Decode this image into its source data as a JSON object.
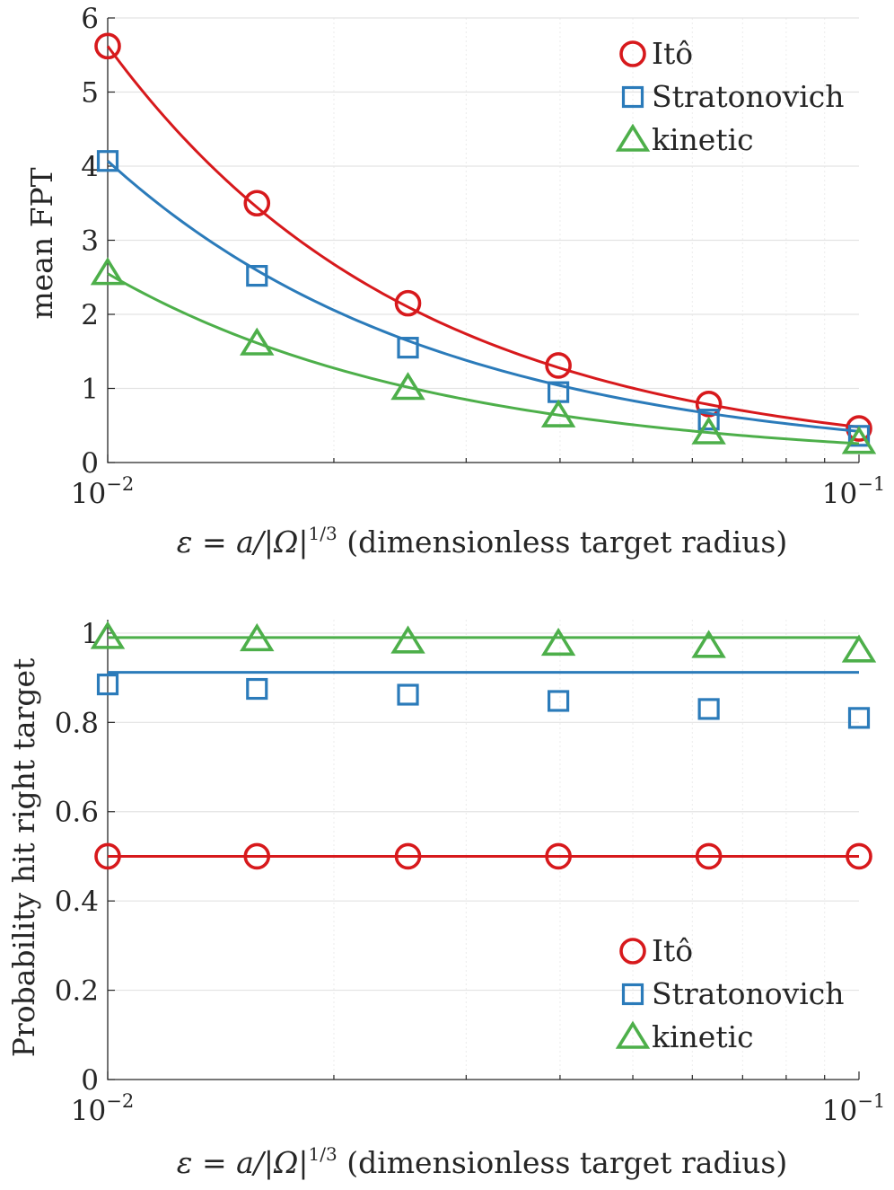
{
  "chart_data": [
    {
      "type": "line",
      "id": "top",
      "title": "",
      "xlabel": {
        "prefix": "ε = a/|Ω|",
        "sup": "1/3",
        "suffix": " (dimensionless target radius)"
      },
      "ylabel": "mean FPT",
      "xscale": "log",
      "xlim": [
        0.01,
        0.1
      ],
      "ylim": [
        0,
        6
      ],
      "yticks": [
        "0",
        "1",
        "2",
        "3",
        "4",
        "5",
        "6"
      ],
      "xticks": [
        {
          "base": "10",
          "exp": "−2"
        },
        {
          "base": "10",
          "exp": "−1"
        }
      ],
      "grid": true,
      "legend_position": "top-right",
      "series": [
        {
          "name": "Itô",
          "color": "#d7191c",
          "marker": "circle",
          "x": [
            0.01,
            0.0158,
            0.0251,
            0.0398,
            0.0631,
            0.1
          ],
          "y": [
            5.62,
            3.5,
            2.15,
            1.31,
            0.79,
            0.46
          ],
          "fit": {
            "a": 5.62,
            "b": 1.07
          }
        },
        {
          "name": "Stratonovich",
          "color": "#2b7bba",
          "marker": "square",
          "x": [
            0.01,
            0.0158,
            0.0251,
            0.0398,
            0.0631,
            0.1
          ],
          "y": [
            4.07,
            2.52,
            1.55,
            0.95,
            0.58,
            0.36
          ],
          "fit": {
            "a": 4.07,
            "b": 0.985
          }
        },
        {
          "name": "kinetic",
          "color": "#4daf4a",
          "marker": "triangle",
          "x": [
            0.01,
            0.0158,
            0.0251,
            0.0398,
            0.0631,
            0.1
          ],
          "y": [
            2.55,
            1.6,
            1.0,
            0.63,
            0.4,
            0.27
          ],
          "fit": {
            "a": 2.55,
            "b": 1.0
          }
        }
      ]
    },
    {
      "type": "line",
      "id": "bottom",
      "title": "",
      "xlabel": {
        "prefix": "ε = a/|Ω|",
        "sup": "1/3",
        "suffix": " (dimensionless target radius)"
      },
      "ylabel": "Probability hit right target",
      "xscale": "log",
      "xlim": [
        0.01,
        0.1
      ],
      "ylim": [
        0,
        1.03
      ],
      "yticks": [
        "0",
        "0.2",
        "0.4",
        "0.6",
        "0.8",
        "1"
      ],
      "xticks": [
        {
          "base": "10",
          "exp": "−2"
        },
        {
          "base": "10",
          "exp": "−1"
        }
      ],
      "grid": true,
      "legend_position": "bottom-right",
      "series": [
        {
          "name": "Itô",
          "color": "#d7191c",
          "marker": "circle",
          "x": [
            0.01,
            0.0158,
            0.0251,
            0.0398,
            0.0631,
            0.1
          ],
          "y": [
            0.5,
            0.5,
            0.5,
            0.5,
            0.5,
            0.5
          ],
          "line_value": 0.5
        },
        {
          "name": "Stratonovich",
          "color": "#2b7bba",
          "marker": "square",
          "x": [
            0.01,
            0.0158,
            0.0251,
            0.0398,
            0.0631,
            0.1
          ],
          "y": [
            0.885,
            0.875,
            0.862,
            0.848,
            0.83,
            0.81
          ],
          "line_value": 0.912
        },
        {
          "name": "kinetic",
          "color": "#4daf4a",
          "marker": "triangle",
          "x": [
            0.01,
            0.0158,
            0.0251,
            0.0398,
            0.0631,
            0.1
          ],
          "y": [
            0.99,
            0.985,
            0.98,
            0.975,
            0.97,
            0.96
          ],
          "line_value": 0.99
        }
      ]
    }
  ]
}
